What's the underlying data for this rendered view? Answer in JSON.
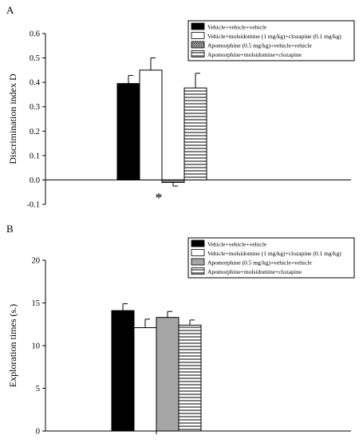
{
  "chart_data": [
    {
      "panel_label": "A",
      "type": "bar",
      "ylabel": "Discrimination index D",
      "ylim": [
        -0.1,
        0.6
      ],
      "yticks": [
        "-0.1",
        "0.0",
        "0.1",
        "0.2",
        "0.3",
        "0.4",
        "0.5",
        "0.6"
      ],
      "legend_position": "top-right",
      "annotation": "*",
      "series": [
        {
          "name": "Vehicle+vehicle+vehicle",
          "value": 0.395,
          "error": 0.033,
          "fill": "solid-black"
        },
        {
          "name": "Vehicle+molsidomine (1 mg/kg)+clozapine (0.1 mg/kg)",
          "value": 0.45,
          "error": 0.05,
          "fill": "white"
        },
        {
          "name": "Apomorphine (0.5 mg/kg)+vehicle+vehicle",
          "value": -0.01,
          "error": 0.015,
          "fill": "gray-dark-outline"
        },
        {
          "name": "Apomorphine+molsidomine+clozapine",
          "value": 0.377,
          "error": 0.06,
          "fill": "horizontal-lines"
        }
      ]
    },
    {
      "panel_label": "B",
      "type": "bar",
      "ylabel": "Exploration times (s.)",
      "ylim": [
        0,
        20
      ],
      "yticks": [
        "0",
        "5",
        "10",
        "15",
        "20"
      ],
      "legend_position": "top-right",
      "series": [
        {
          "name": "Vehicle+vehicle+vehicle",
          "value": 14.1,
          "error": 0.8,
          "fill": "solid-black"
        },
        {
          "name": "Vehicle+molsidomine (1 mg/kg)+clozapine (0.1 mg/kg)",
          "value": 12.1,
          "error": 1.0,
          "fill": "white"
        },
        {
          "name": "Apomorphine (0.5 mg/kg)+vehicle+vehicle",
          "value": 13.3,
          "error": 0.7,
          "fill": "gray"
        },
        {
          "name": "Apomorphine+molsidomine+clozapine",
          "value": 12.4,
          "error": 0.6,
          "fill": "horizontal-lines"
        }
      ]
    }
  ],
  "colors": {
    "black": "#000000",
    "gray": "#a6a6a6",
    "darkgray": "#7a7a7a"
  }
}
